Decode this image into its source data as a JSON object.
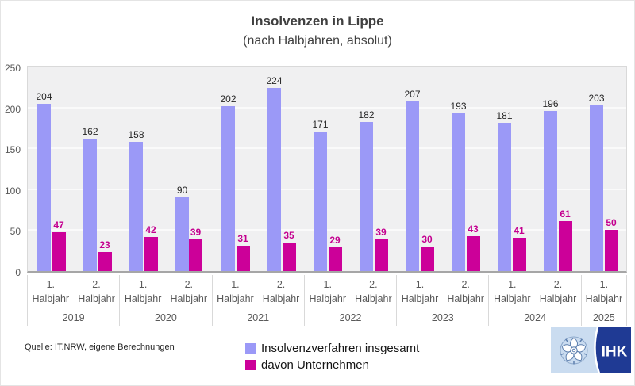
{
  "title": "Insolvenzen in Lippe",
  "subtitle": "(nach Halbjahren, absolut)",
  "source_note": "Quelle: IT.NRW, eigene Berechnungen",
  "logo": {
    "text": "IHK"
  },
  "colors": {
    "bar_total": "#9b99f7",
    "bar_companies": "#cc0099",
    "total_value_label": "#262626",
    "companies_value_label": "#c4008f",
    "plot_background": "#f0f0f1",
    "gridline": "#fafafa",
    "axis_line": "#a6a6a6",
    "separator": "#d9d9d9",
    "logo_light_blue": "#cadcf0",
    "logo_dark_blue": "#1f3a94"
  },
  "legend": {
    "items": [
      {
        "label": "Insolvenzverfahren insgesamt",
        "color": "#9b99f7"
      },
      {
        "label": "davon Unternehmen",
        "color": "#cc0099"
      }
    ]
  },
  "chart_data": {
    "type": "bar",
    "title": "Insolvenzen in Lippe",
    "subtitle": "(nach Halbjahren, absolut)",
    "xlabel": "",
    "ylabel": "",
    "ylim": [
      0,
      250
    ],
    "yticks": [
      0,
      50,
      100,
      150,
      200,
      250
    ],
    "grid": true,
    "legend_position": "bottom-center",
    "year_groups": [
      {
        "year": "2019",
        "halves": [
          {
            "line1": "1.",
            "line2": "Halbjahr"
          },
          {
            "line1": "2.",
            "line2": "Halbjahr"
          }
        ]
      },
      {
        "year": "2020",
        "halves": [
          {
            "line1": "1.",
            "line2": "Halbjahr"
          },
          {
            "line1": "2.",
            "line2": "Halbjahr"
          }
        ]
      },
      {
        "year": "2021",
        "halves": [
          {
            "line1": "1.",
            "line2": "Halbjahr"
          },
          {
            "line1": "2.",
            "line2": "Halbjahr"
          }
        ]
      },
      {
        "year": "2022",
        "halves": [
          {
            "line1": "1.",
            "line2": "Halbjahr"
          },
          {
            "line1": "2.",
            "line2": "Halbjahr"
          }
        ]
      },
      {
        "year": "2023",
        "halves": [
          {
            "line1": "1.",
            "line2": "Halbjahr"
          },
          {
            "line1": "2.",
            "line2": "Halbjahr"
          }
        ]
      },
      {
        "year": "2024",
        "halves": [
          {
            "line1": "1.",
            "line2": "Halbjahr"
          },
          {
            "line1": "2.",
            "line2": "Halbjahr"
          }
        ]
      },
      {
        "year": "2025",
        "halves": [
          {
            "line1": "1.",
            "line2": "Halbjahr"
          }
        ]
      }
    ],
    "categories": [
      "1. Halbjahr 2019",
      "2. Halbjahr 2019",
      "1. Halbjahr 2020",
      "2. Halbjahr 2020",
      "1. Halbjahr 2021",
      "2. Halbjahr 2021",
      "1. Halbjahr 2022",
      "2. Halbjahr 2022",
      "1. Halbjahr 2023",
      "2. Halbjahr 2023",
      "1. Halbjahr 2024",
      "2. Halbjahr 2024",
      "1. Halbjahr 2025"
    ],
    "series": [
      {
        "name": "Insolvenzverfahren insgesamt",
        "color": "#9b99f7",
        "values": [
          204,
          162,
          158,
          90,
          202,
          224,
          171,
          182,
          207,
          193,
          181,
          196,
          203
        ]
      },
      {
        "name": "davon Unternehmen",
        "color": "#cc0099",
        "values": [
          47,
          23,
          42,
          39,
          31,
          35,
          29,
          39,
          30,
          43,
          41,
          61,
          50
        ]
      }
    ]
  }
}
